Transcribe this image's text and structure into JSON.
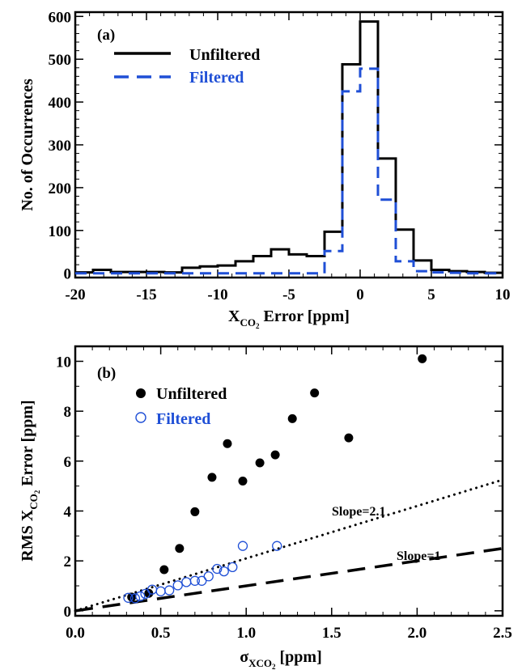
{
  "chart_data": [
    {
      "type": "histogram",
      "panel_label": "(a)",
      "xlabel_main": "X",
      "xlabel_sub": "CO",
      "xlabel_subsub": "2",
      "xlabel_rest": " Error [ppm]",
      "ylabel": "No. of Occurrences",
      "xlim": [
        -20,
        10
      ],
      "ylim": [
        -10,
        610
      ],
      "x_ticks": [
        -20,
        -15,
        -10,
        -5,
        0,
        5,
        10
      ],
      "y_ticks": [
        0,
        100,
        200,
        300,
        400,
        500,
        600
      ],
      "bin_edges": [
        -20,
        -18.75,
        -17.5,
        -16.25,
        -15,
        -13.75,
        -12.5,
        -11.25,
        -10,
        -8.75,
        -7.5,
        -6.25,
        -5,
        -3.75,
        -2.5,
        -1.25,
        0,
        1.25,
        2.5,
        3.75,
        5,
        6.25,
        7.5,
        8.75,
        10
      ],
      "legend_position": "top-left",
      "series": [
        {
          "name": "Unfiltered",
          "color": "#000000",
          "dash": "solid",
          "values": [
            2,
            8,
            3,
            3,
            3,
            2,
            13,
            16,
            18,
            28,
            40,
            56,
            44,
            40,
            97,
            488,
            588,
            268,
            102,
            30,
            8,
            5,
            3,
            1
          ]
        },
        {
          "name": "Filtered",
          "color": "#1f4fd6",
          "dash": "dashed",
          "values": [
            0,
            0,
            0,
            0,
            0,
            0,
            0,
            0,
            0,
            0,
            0,
            0,
            0,
            0,
            52,
            425,
            478,
            172,
            28,
            5,
            2,
            1,
            0,
            0
          ]
        }
      ]
    },
    {
      "type": "scatter",
      "panel_label": "(b)",
      "xlabel_main": "σ",
      "xlabel_sub": "XCO",
      "xlabel_subsub": "2",
      "xlabel_rest": " [ppm]",
      "ylabel_main": "RMS X",
      "ylabel_sub": "CO",
      "ylabel_subsub": "2",
      "ylabel_rest": " Error [ppm]",
      "xlim": [
        0,
        2.5
      ],
      "ylim": [
        -0.2,
        10.6
      ],
      "x_ticks": [
        "0.0",
        "0.5",
        "1.0",
        "1.5",
        "2.0",
        "2.5"
      ],
      "y_ticks": [
        0,
        2,
        4,
        6,
        8,
        10
      ],
      "legend_position": "top-left",
      "series": [
        {
          "name": "Unfiltered",
          "color": "#000000",
          "marker": "filled-circle",
          "points": [
            [
              0.33,
              0.55
            ],
            [
              0.43,
              0.7
            ],
            [
              0.52,
              1.65
            ],
            [
              0.61,
              2.5
            ],
            [
              0.7,
              3.97
            ],
            [
              0.8,
              5.35
            ],
            [
              0.89,
              6.7
            ],
            [
              0.98,
              5.2
            ],
            [
              1.08,
              5.93
            ],
            [
              1.17,
              6.25
            ],
            [
              1.27,
              7.7
            ],
            [
              1.4,
              8.73
            ],
            [
              1.6,
              6.93
            ],
            [
              2.03,
              10.1
            ]
          ]
        },
        {
          "name": "Filtered",
          "color": "#1f4fd6",
          "marker": "open-circle",
          "points": [
            [
              0.31,
              0.52
            ],
            [
              0.35,
              0.5
            ],
            [
              0.38,
              0.58
            ],
            [
              0.41,
              0.68
            ],
            [
              0.45,
              0.85
            ],
            [
              0.5,
              0.78
            ],
            [
              0.55,
              0.82
            ],
            [
              0.6,
              1.02
            ],
            [
              0.65,
              1.15
            ],
            [
              0.7,
              1.2
            ],
            [
              0.74,
              1.2
            ],
            [
              0.78,
              1.38
            ],
            [
              0.83,
              1.68
            ],
            [
              0.87,
              1.58
            ],
            [
              0.92,
              1.75
            ],
            [
              0.98,
              2.6
            ],
            [
              1.18,
              2.6
            ]
          ]
        }
      ],
      "reference_lines": [
        {
          "label": "Slope=2.1",
          "slope": 2.1,
          "style": "dotted"
        },
        {
          "label": "Slope=1",
          "slope": 1,
          "style": "dashed"
        }
      ]
    }
  ]
}
